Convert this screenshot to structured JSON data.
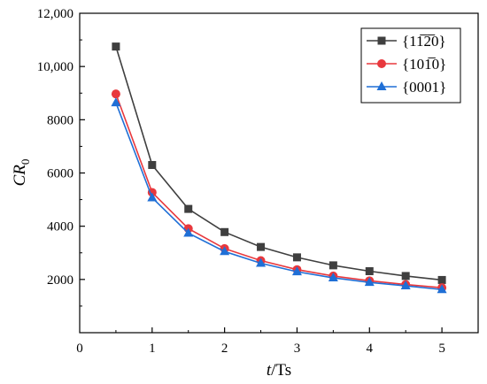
{
  "chart_data": {
    "type": "line",
    "x": [
      0.5,
      1,
      1.5,
      2,
      2.5,
      3,
      3.5,
      4,
      4.5,
      5
    ],
    "series": [
      {
        "name": "{11̅2̅0}",
        "color": "#3f3f3f",
        "marker": "square",
        "values": [
          10750,
          6300,
          4650,
          3780,
          3220,
          2830,
          2530,
          2310,
          2130,
          1980
        ]
      },
      {
        "name": "{101̅0}",
        "color": "#e8383d",
        "marker": "circle",
        "values": [
          8970,
          5270,
          3910,
          3160,
          2710,
          2370,
          2130,
          1950,
          1810,
          1690
        ]
      },
      {
        "name": "{0001}",
        "color": "#1f6fd6",
        "marker": "triangle",
        "values": [
          8640,
          5070,
          3740,
          3050,
          2610,
          2290,
          2060,
          1890,
          1760,
          1620
        ]
      }
    ],
    "xlim": [
      0,
      5.5
    ],
    "ylim": [
      0,
      12000
    ],
    "xticks": [
      "0",
      "1",
      "2",
      "3",
      "4",
      "5"
    ],
    "yticks": [
      "2000",
      "4000",
      "6000",
      "8000",
      "10,000",
      "12,000"
    ],
    "xlabel": {
      "italic": "t",
      "rest": "/Ts"
    },
    "ylabel": {
      "main": "CR",
      "sub": "0"
    },
    "legend_position": "top-right",
    "grid": false
  }
}
